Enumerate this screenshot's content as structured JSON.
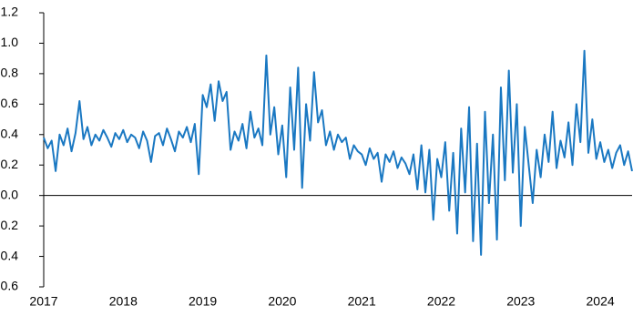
{
  "chart_data": {
    "type": "line",
    "color": "#1a78c2",
    "xlim": [
      2017,
      2024.4
    ],
    "xticks": [
      2017,
      2018,
      2019,
      2020,
      2021,
      2022,
      2023,
      2024
    ],
    "ylim": [
      -0.6,
      1.2
    ],
    "yticks": [
      -0.6,
      -0.4,
      -0.2,
      {
        "value": 0,
        "label": "0.0"
      },
      0.2,
      0.4,
      0.6,
      0.8,
      {
        "value": 1,
        "label": "1.0"
      },
      1.2
    ],
    "x": [
      2017,
      2017.05,
      2017.1,
      2017.15,
      2017.2,
      2017.25,
      2017.3,
      2017.35,
      2017.4,
      2017.45,
      2017.5,
      2017.55,
      2017.6,
      2017.65,
      2017.7,
      2017.75,
      2017.8,
      2017.85,
      2017.9,
      2017.95,
      2018,
      2018.05,
      2018.1,
      2018.15,
      2018.2,
      2018.25,
      2018.3,
      2018.35,
      2018.4,
      2018.45,
      2018.5,
      2018.55,
      2018.6,
      2018.65,
      2018.7,
      2018.75,
      2018.8,
      2018.85,
      2018.9,
      2018.95,
      2019,
      2019.05,
      2019.1,
      2019.15,
      2019.2,
      2019.25,
      2019.3,
      2019.35,
      2019.4,
      2019.45,
      2019.5,
      2019.55,
      2019.6,
      2019.65,
      2019.7,
      2019.75,
      2019.8,
      2019.85,
      2019.9,
      2019.95,
      2020,
      2020.05,
      2020.1,
      2020.15,
      2020.2,
      2020.25,
      2020.3,
      2020.35,
      2020.4,
      2020.45,
      2020.5,
      2020.55,
      2020.6,
      2020.65,
      2020.7,
      2020.75,
      2020.8,
      2020.85,
      2020.9,
      2020.95,
      2021,
      2021.05,
      2021.1,
      2021.15,
      2021.2,
      2021.25,
      2021.3,
      2021.35,
      2021.4,
      2021.45,
      2021.5,
      2021.55,
      2021.6,
      2021.65,
      2021.7,
      2021.75,
      2021.8,
      2021.85,
      2021.9,
      2021.95,
      2022,
      2022.05,
      2022.1,
      2022.15,
      2022.2,
      2022.25,
      2022.3,
      2022.35,
      2022.4,
      2022.45,
      2022.5,
      2022.55,
      2022.6,
      2022.65,
      2022.7,
      2022.75,
      2022.8,
      2022.85,
      2022.9,
      2022.95,
      2023,
      2023.05,
      2023.1,
      2023.15,
      2023.2,
      2023.25,
      2023.3,
      2023.35,
      2023.4,
      2023.45,
      2023.5,
      2023.55,
      2023.6,
      2023.65,
      2023.7,
      2023.75,
      2023.8,
      2023.85,
      2023.9,
      2023.95,
      2024,
      2024.05,
      2024.1,
      2024.15,
      2024.2,
      2024.25,
      2024.3,
      2024.35,
      2024.4
    ],
    "values": [
      0.38,
      0.31,
      0.36,
      0.16,
      0.4,
      0.33,
      0.44,
      0.29,
      0.41,
      0.62,
      0.37,
      0.45,
      0.33,
      0.4,
      0.36,
      0.43,
      0.38,
      0.32,
      0.41,
      0.37,
      0.43,
      0.35,
      0.4,
      0.38,
      0.31,
      0.42,
      0.36,
      0.22,
      0.39,
      0.41,
      0.33,
      0.44,
      0.37,
      0.29,
      0.42,
      0.38,
      0.45,
      0.35,
      0.47,
      0.14,
      0.66,
      0.58,
      0.73,
      0.49,
      0.75,
      0.62,
      0.68,
      0.3,
      0.42,
      0.36,
      0.47,
      0.31,
      0.55,
      0.38,
      0.44,
      0.33,
      0.92,
      0.4,
      0.58,
      0.27,
      0.46,
      0.12,
      0.71,
      0.3,
      0.84,
      0.05,
      0.6,
      0.36,
      0.81,
      0.48,
      0.56,
      0.33,
      0.42,
      0.3,
      0.4,
      0.35,
      0.38,
      0.24,
      0.33,
      0.29,
      0.27,
      0.2,
      0.31,
      0.24,
      0.28,
      0.09,
      0.27,
      0.22,
      0.29,
      0.18,
      0.25,
      0.21,
      0.14,
      0.27,
      0.04,
      0.33,
      0.02,
      0.3,
      -0.16,
      0.24,
      0.12,
      0.35,
      -0.1,
      0.28,
      -0.25,
      0.44,
      0.02,
      0.58,
      -0.3,
      0.34,
      -0.39,
      0.55,
      -0.05,
      0.4,
      -0.29,
      0.71,
      0.1,
      0.82,
      0.15,
      0.6,
      -0.2,
      0.45,
      0.2,
      -0.05,
      0.3,
      0.12,
      0.4,
      0.22,
      0.55,
      0.18,
      0.36,
      0.25,
      0.48,
      0.2,
      0.6,
      0.35,
      0.95,
      0.28,
      0.5,
      0.24,
      0.35,
      0.22,
      0.3,
      0.18,
      0.28,
      0.33,
      0.2,
      0.29,
      0.16
    ]
  }
}
